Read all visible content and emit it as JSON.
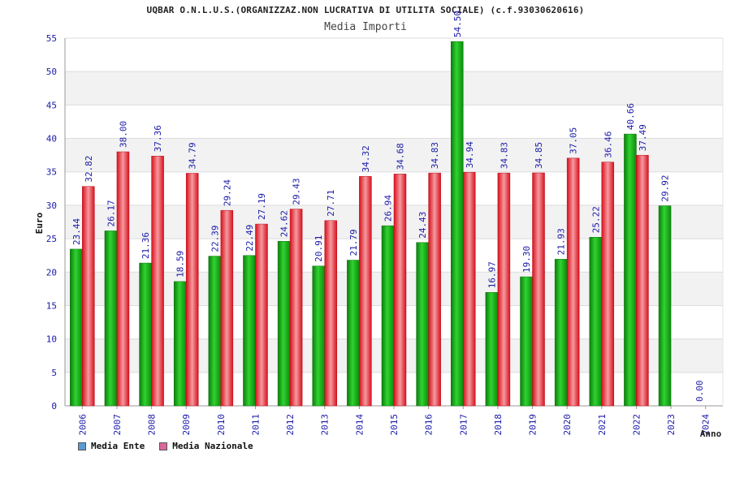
{
  "chart_data": {
    "type": "bar",
    "title": "UQBAR O.N.L.U.S.(ORGANIZZAZ.NON LUCRATIVA DI UTILITA SOCIALE) (c.f.93030620616)",
    "subtitle": "Media Importi",
    "xlabel": "Anno",
    "ylabel": "Euro",
    "ylim": [
      0,
      55
    ],
    "yticks": [
      0,
      5,
      10,
      15,
      20,
      25,
      30,
      35,
      40,
      45,
      50,
      55
    ],
    "grid": true,
    "legend_position": "bottom-left",
    "categories": [
      "2006",
      "2007",
      "2008",
      "2009",
      "2010",
      "2011",
      "2012",
      "2013",
      "2014",
      "2015",
      "2016",
      "2017",
      "2018",
      "2019",
      "2020",
      "2021",
      "2022",
      "2023",
      "2024"
    ],
    "series": [
      {
        "name": "Media Ente",
        "legend_color": "#5b9bd5",
        "bar_color": "#1fb51f",
        "values": [
          23.44,
          26.17,
          21.36,
          18.59,
          22.39,
          22.49,
          24.62,
          20.91,
          21.79,
          26.94,
          24.43,
          54.5,
          16.97,
          19.3,
          21.93,
          25.22,
          40.66,
          29.92,
          0.0
        ],
        "labels": [
          "23.44",
          "26.17",
          "21.36",
          "18.59",
          "22.39",
          "22.49",
          "24.62",
          "20.91",
          "21.79",
          "26.94",
          "24.43",
          "54.50",
          "16.97",
          "19.30",
          "21.93",
          "25.22",
          "40.66",
          "29.92",
          "0.00"
        ]
      },
      {
        "name": "Media Nazionale",
        "legend_color": "#d9679a",
        "bar_color": "#e8303a",
        "values": [
          32.82,
          38.0,
          37.36,
          34.79,
          29.24,
          27.19,
          29.43,
          27.71,
          34.32,
          34.68,
          34.83,
          34.94,
          34.83,
          34.85,
          37.05,
          36.46,
          37.49,
          null,
          null
        ],
        "labels": [
          "32.82",
          "38.00",
          "37.36",
          "34.79",
          "29.24",
          "27.19",
          "29.43",
          "27.71",
          "34.32",
          "34.68",
          "34.83",
          "34.94",
          "34.83",
          "34.85",
          "37.05",
          "36.46",
          "37.49",
          null,
          null
        ]
      }
    ]
  }
}
